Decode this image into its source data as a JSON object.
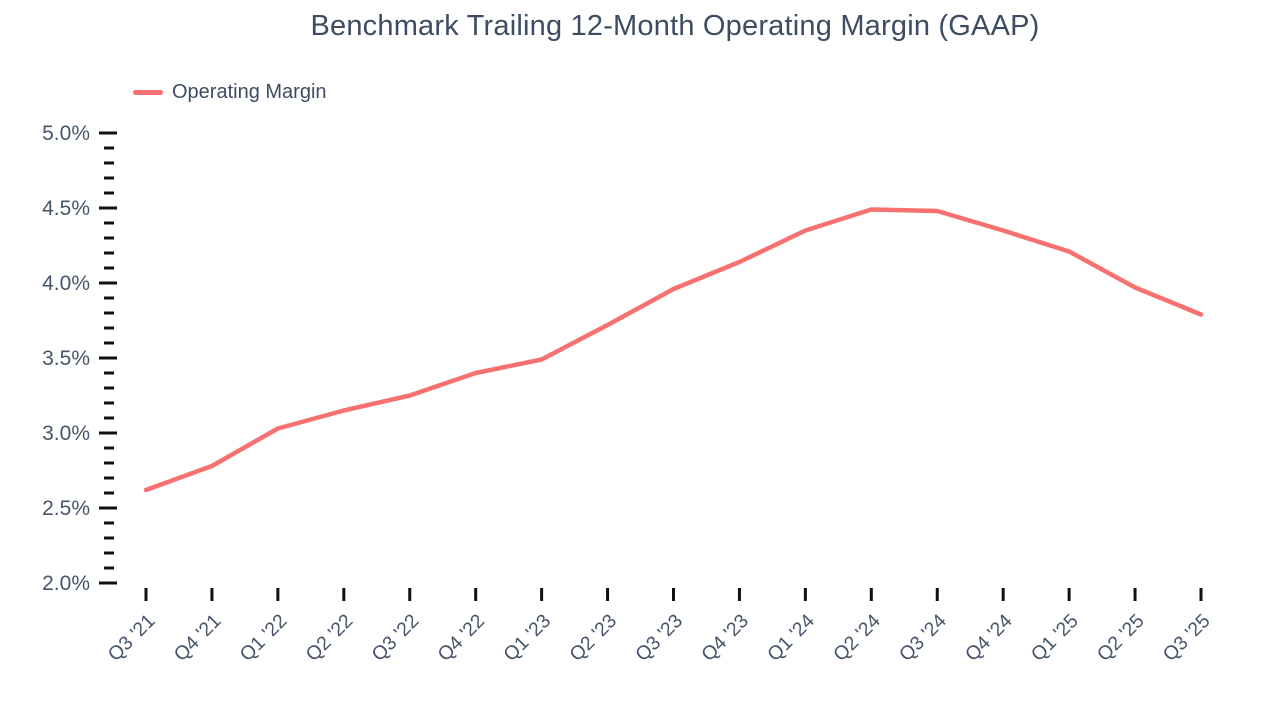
{
  "chart_data": {
    "type": "line",
    "title": "Benchmark Trailing 12-Month Operating Margin (GAAP)",
    "legend": "Operating Margin",
    "categories": [
      "Q3 '21",
      "Q4 '21",
      "Q1 '22",
      "Q2 '22",
      "Q3 '22",
      "Q4 '22",
      "Q1 '23",
      "Q2 '23",
      "Q3 '23",
      "Q4 '23",
      "Q1 '24",
      "Q2 '24",
      "Q3 '24",
      "Q4 '24",
      "Q1 '25",
      "Q2 '25",
      "Q3 '25"
    ],
    "series": [
      {
        "name": "Operating Margin",
        "values": [
          2.62,
          2.78,
          3.03,
          3.15,
          3.25,
          3.4,
          3.49,
          3.72,
          3.96,
          4.14,
          4.35,
          4.49,
          4.48,
          4.35,
          4.21,
          3.97,
          3.79
        ]
      }
    ],
    "unit": "%",
    "xlabel": "",
    "ylabel": "",
    "ylim": [
      2.0,
      5.0
    ],
    "y_major_step": 0.5,
    "y_minor_step": 0.1,
    "y_tick_labels": [
      "2.0%",
      "2.5%",
      "3.0%",
      "3.5%",
      "4.0%",
      "4.5%",
      "5.0%"
    ],
    "grid": false,
    "legend_position": "top-left"
  },
  "colors": {
    "line": "#F87171",
    "tick": "#111111",
    "axis_label": "#47556B",
    "title": "#3D4C63"
  }
}
